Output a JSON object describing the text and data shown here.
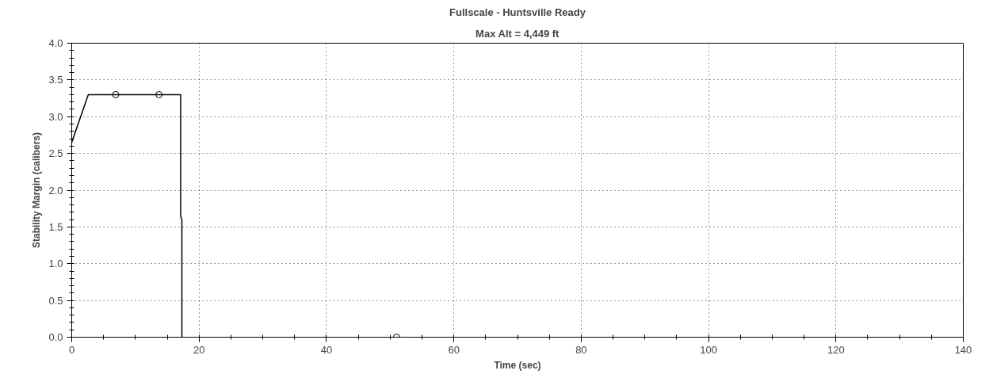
{
  "chart_data": {
    "type": "line",
    "title": "Fullscale - Huntsville Ready",
    "subtitle": "Max Alt = 4,449 ft",
    "xlabel": "Time (sec)",
    "ylabel": "Stability Margin (calibers)",
    "xlim": [
      0,
      140
    ],
    "ylim": [
      0,
      4
    ],
    "xticks": [
      0,
      20,
      40,
      60,
      80,
      100,
      120,
      140
    ],
    "yticks": [
      {
        "value": 0,
        "label": "0.0"
      },
      {
        "value": 0.5,
        "label": "0.5"
      },
      {
        "value": 1,
        "label": "1.0"
      },
      {
        "value": 1.5,
        "label": "1.5"
      },
      {
        "value": 2,
        "label": "2.0"
      },
      {
        "value": 2.5,
        "label": "2.5"
      },
      {
        "value": 3,
        "label": "3.0"
      },
      {
        "value": 3.5,
        "label": "3.5"
      },
      {
        "value": 4,
        "label": "4.0"
      }
    ],
    "grid": true,
    "line_style": "solid",
    "marker": "none",
    "series": [
      {
        "color": "#000000",
        "x": [
          0,
          2.6,
          17.1,
          17.1,
          17.3,
          17.3
        ],
        "values": [
          2.65,
          3.3,
          3.3,
          1.65,
          1.6,
          0
        ]
      },
      {
        "type": "scatter",
        "marker": "circle",
        "color": "#000000",
        "x": [
          6.9,
          13.7,
          51
        ],
        "values": [
          3.3,
          3.3,
          0
        ]
      }
    ]
  }
}
